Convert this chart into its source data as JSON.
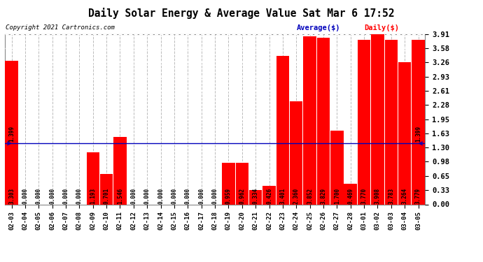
{
  "title": "Daily Solar Energy & Average Value Sat Mar 6 17:52",
  "copyright": "Copyright 2021 Cartronics.com",
  "legend_avg": "Average($)",
  "legend_daily": "Daily($)",
  "average_line": 1.399,
  "categories": [
    "02-03",
    "02-04",
    "02-05",
    "02-06",
    "02-07",
    "02-08",
    "02-09",
    "02-10",
    "02-11",
    "02-12",
    "02-13",
    "02-14",
    "02-15",
    "02-16",
    "02-17",
    "02-18",
    "02-19",
    "02-20",
    "02-21",
    "02-22",
    "02-23",
    "02-24",
    "02-25",
    "02-26",
    "02-27",
    "02-28",
    "03-01",
    "03-02",
    "03-03",
    "03-04",
    "03-05"
  ],
  "values": [
    3.303,
    0.0,
    0.0,
    0.0,
    0.0,
    0.0,
    1.193,
    0.701,
    1.546,
    0.0,
    0.0,
    0.0,
    0.0,
    0.0,
    0.0,
    0.0,
    0.959,
    0.962,
    0.334,
    0.426,
    3.401,
    2.36,
    3.852,
    3.829,
    1.7,
    0.469,
    3.77,
    3.908,
    3.783,
    3.264,
    3.779
  ],
  "bar_color": "#ff0000",
  "avg_line_color": "#0000bb",
  "avg_label_color": "#0000bb",
  "daily_label_color": "#ff0000",
  "title_color": "#000000",
  "copyright_color": "#000000",
  "background_color": "#ffffff",
  "grid_color": "#bbbbbb",
  "ylim": [
    0.0,
    3.91
  ],
  "yticks": [
    0.0,
    0.33,
    0.65,
    0.98,
    1.3,
    1.63,
    1.95,
    2.28,
    2.61,
    2.93,
    3.26,
    3.58,
    3.91
  ],
  "value_fontsize": 5.5,
  "avg_annotation": "1.399",
  "title_fontsize": 10.5
}
